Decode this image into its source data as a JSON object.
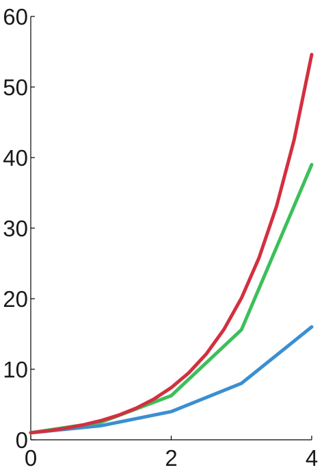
{
  "chart_data": {
    "type": "line",
    "title": "",
    "xlabel": "",
    "ylabel": "",
    "xlim": [
      0,
      4
    ],
    "ylim": [
      0,
      60
    ],
    "xticks": [
      0,
      2,
      4
    ],
    "yticks": [
      0,
      10,
      20,
      30,
      40,
      50,
      60
    ],
    "xtick_labels": [
      "0",
      "2",
      "4"
    ],
    "ytick_labels": [
      "0",
      "10",
      "20",
      "30",
      "40",
      "50",
      "60"
    ],
    "grid": false,
    "legend": "none",
    "series": [
      {
        "color": "#3a8fd0",
        "x": [
          0,
          1,
          2,
          3,
          4
        ],
        "y": [
          1,
          2,
          4,
          8,
          16
        ]
      },
      {
        "color": "#3cbf5a",
        "x": [
          0,
          1,
          2,
          3,
          4
        ],
        "y": [
          1,
          2.5,
          6.25,
          15.6,
          39
        ]
      },
      {
        "color": "#d2303f",
        "x": [
          0,
          0.25,
          0.5,
          0.75,
          1,
          1.25,
          1.5,
          1.75,
          2,
          2.25,
          2.5,
          2.75,
          3,
          3.25,
          3.5,
          3.75,
          4
        ],
        "y": [
          1,
          1.28,
          1.65,
          2.12,
          2.72,
          3.49,
          4.48,
          5.75,
          7.39,
          9.49,
          12.18,
          15.64,
          20.09,
          25.79,
          33.12,
          42.52,
          54.6
        ]
      }
    ]
  }
}
